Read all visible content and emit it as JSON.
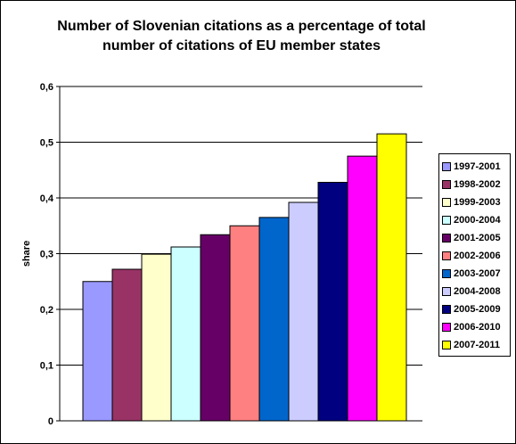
{
  "title": {
    "line1": "Number of Slovenian citations as a percentage of total",
    "line2": "number of citations of EU member states"
  },
  "chart_data": {
    "type": "bar",
    "title": "Number of Slovenian citations as a percentage of total number of citations of EU member states",
    "xlabel": "",
    "ylabel": "share",
    "ylim": [
      0,
      0.6
    ],
    "yticks": [
      "0",
      "0,1",
      "0,2",
      "0,3",
      "0,4",
      "0,5",
      "0,6"
    ],
    "grid": true,
    "legend_position": "right",
    "series": [
      {
        "name": "1997-2001",
        "value": 0.25,
        "color": "#9999ff"
      },
      {
        "name": "1998-2002",
        "value": 0.272,
        "color": "#993366"
      },
      {
        "name": "1999-2003",
        "value": 0.299,
        "color": "#ffffcc"
      },
      {
        "name": "2000-2004",
        "value": 0.312,
        "color": "#ccffff"
      },
      {
        "name": "2001-2005",
        "value": 0.334,
        "color": "#660066"
      },
      {
        "name": "2002-2006",
        "value": 0.35,
        "color": "#ff8080"
      },
      {
        "name": "2003-2007",
        "value": 0.365,
        "color": "#0066cc"
      },
      {
        "name": "2004-2008",
        "value": 0.392,
        "color": "#ccccff"
      },
      {
        "name": "2005-2009",
        "value": 0.428,
        "color": "#000080"
      },
      {
        "name": "2006-2010",
        "value": 0.475,
        "color": "#ff00ff"
      },
      {
        "name": "2007-2011",
        "value": 0.515,
        "color": "#ffff00"
      }
    ]
  }
}
